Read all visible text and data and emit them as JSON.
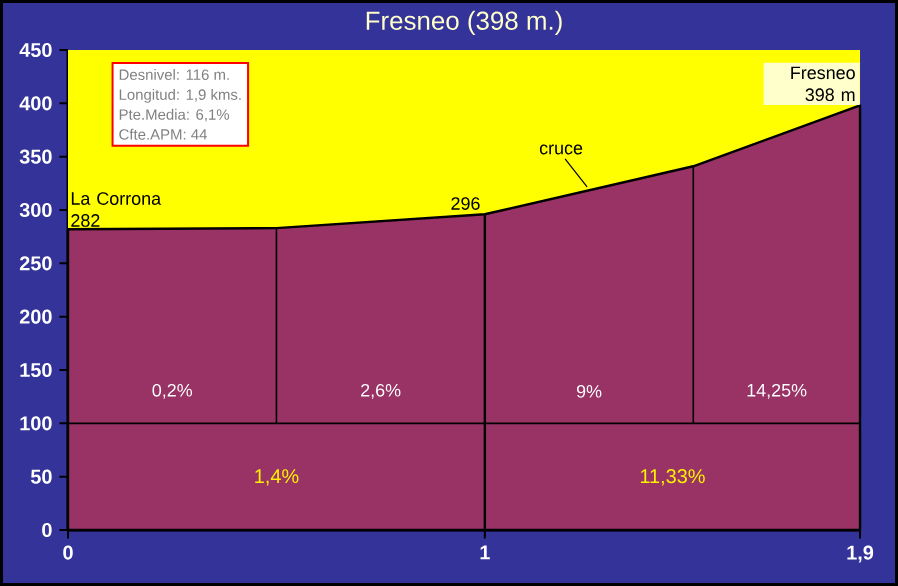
{
  "chart_data": {
    "type": "area",
    "title": "Fresneo (398 m.)",
    "x": [
      0,
      0.5,
      1,
      1.5,
      1.9
    ],
    "series": [
      {
        "color": "#993366",
        "values": [
          282,
          283,
          296,
          341,
          398
        ]
      }
    ],
    "xlim": [
      0,
      1.9
    ],
    "ylim": [
      0,
      450
    ],
    "xticks": [
      0,
      1,
      {
        "value": 1.9,
        "label": "1,9"
      }
    ],
    "yticks": [
      0,
      50,
      100,
      150,
      200,
      250,
      300,
      350,
      400,
      450
    ],
    "grid": false,
    "bands": [
      {
        "axis": "y",
        "from": 282,
        "to": 450,
        "color": "#ffff00"
      }
    ],
    "ref_lines": [
      {
        "axis": "y",
        "value": 100,
        "color": "#000000"
      },
      {
        "axis": "x",
        "value": 0.5,
        "color": "#000000"
      },
      {
        "axis": "x",
        "value": 1,
        "color": "#000000"
      },
      {
        "axis": "x",
        "value": 1.5,
        "color": "#000000"
      }
    ],
    "annotations": [
      "Desnivel: 116 m.",
      "Longitud: 1,9 kms.",
      "Pte.Media: 6,1%",
      "Cfte.APM: 44",
      "0,2%",
      "2,6%",
      "9%",
      "14,25%",
      "1,4%",
      "11,33%",
      {
        "text": "La Corrona 282",
        "x": 0,
        "y": 282
      },
      {
        "text": "296",
        "x": 1,
        "y": 296
      },
      {
        "text": "cruce",
        "x": 1.25,
        "y": 318
      },
      {
        "text": "Fresneo 398 m",
        "x": 1.9,
        "y": 398
      }
    ]
  }
}
